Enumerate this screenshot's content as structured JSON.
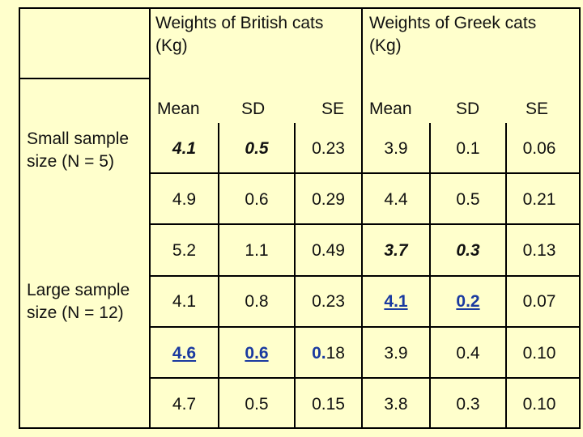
{
  "header": {
    "british": [
      "Weights of British cats",
      "(Kg)"
    ],
    "greek": [
      "Weights of Greek cats",
      "(Kg)"
    ],
    "cols": [
      "Mean",
      "SD",
      "SE",
      "Mean",
      "SD",
      "SE"
    ]
  },
  "groups": {
    "small": [
      "Small sample",
      "size (N = 5)"
    ],
    "large": [
      "Large sample",
      "size (N = 12)"
    ]
  },
  "rows": [
    [
      "4.1",
      "0.5",
      "0.23",
      "3.9",
      "0.1",
      "0.06"
    ],
    [
      "4.9",
      "0.6",
      "0.29",
      "4.4",
      "0.5",
      "0.21"
    ],
    [
      "5.2",
      "1.1",
      "0.49",
      "3.7",
      "0.3",
      "0.13"
    ],
    [
      "4.1",
      "0.8",
      "0.23",
      "4.1",
      "0.2",
      "0.07"
    ],
    [
      "4.6",
      "0.6",
      "0.18",
      "3.9",
      "0.4",
      "0.10"
    ],
    [
      "4.7",
      "0.5",
      "0.15",
      "3.8",
      "0.3",
      "0.10"
    ]
  ],
  "row5_se_parts": [
    "0.",
    "18"
  ],
  "colors": {
    "background": "#ffffcc",
    "highlight": "#1a3aa0"
  }
}
